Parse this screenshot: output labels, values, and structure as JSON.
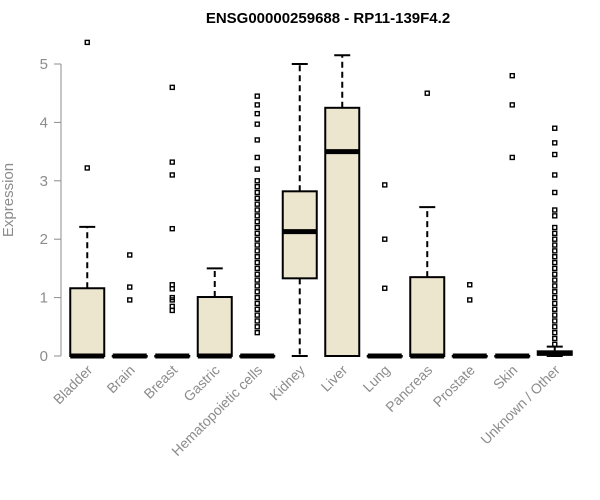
{
  "chart_data": {
    "type": "box",
    "title": "ENSG00000259688 - RP11-139F4.2",
    "xlabel": "",
    "ylabel": "Expression",
    "ylim": [
      0,
      5.3
    ],
    "yticks": [
      "0",
      "1",
      "2",
      "3",
      "4",
      "5"
    ],
    "grid": false,
    "colors": {
      "box_fill": "#ede6cf",
      "stroke": "#000000",
      "axis_text": "#8c8c8c",
      "title": "#000000"
    },
    "categories": [
      "Bladder",
      "Brain",
      "Breast",
      "Gastric",
      "Hematopoietic cells",
      "Kidney",
      "Liver",
      "Lung",
      "Pancreas",
      "Prostate",
      "Skin",
      "Unknown / Other"
    ],
    "boxes": [
      {
        "category": "Bladder",
        "min": 0,
        "q1": 0,
        "median": 0,
        "q3": 1.16,
        "max": 2.21,
        "outliers": [
          3.22,
          5.37
        ]
      },
      {
        "category": "Brain",
        "min": 0,
        "q1": 0,
        "median": 0,
        "q3": 0,
        "max": 0,
        "outliers": [
          0.96,
          1.18,
          1.73
        ]
      },
      {
        "category": "Breast",
        "min": 0,
        "q1": 0,
        "median": 0,
        "q3": 0,
        "max": 0,
        "outliers": [
          0.78,
          0.85,
          0.96,
          1.0,
          1.15,
          1.22,
          2.18,
          3.1,
          3.32,
          4.6
        ]
      },
      {
        "category": "Gastric",
        "min": 0,
        "q1": 0,
        "median": 0,
        "q3": 1.01,
        "max": 1.5,
        "outliers": []
      },
      {
        "category": "Hematopoietic cells",
        "min": 0,
        "q1": 0,
        "median": 0,
        "q3": 0,
        "max": 0,
        "outliers": [
          0.4,
          0.5,
          0.6,
          0.7,
          0.8,
          0.9,
          1.0,
          1.1,
          1.2,
          1.3,
          1.4,
          1.5,
          1.6,
          1.7,
          1.8,
          1.9,
          2.0,
          2.1,
          2.2,
          2.3,
          2.4,
          2.5,
          2.6,
          2.7,
          2.8,
          2.9,
          3.0,
          3.2,
          3.4,
          3.7,
          3.97,
          4.15,
          4.3,
          4.45
        ]
      },
      {
        "category": "Kidney",
        "min": 0,
        "q1": 1.33,
        "median": 2.13,
        "q3": 2.82,
        "max": 5.0,
        "outliers": []
      },
      {
        "category": "Liver",
        "min": 0,
        "q1": 0,
        "median": 3.5,
        "q3": 4.25,
        "max": 5.15,
        "outliers": []
      },
      {
        "category": "Lung",
        "min": 0,
        "q1": 0,
        "median": 0,
        "q3": 0,
        "max": 0,
        "outliers": [
          1.16,
          2.0,
          2.93
        ]
      },
      {
        "category": "Pancreas",
        "min": 0,
        "q1": 0,
        "median": 0,
        "q3": 1.35,
        "max": 2.55,
        "outliers": [
          4.5
        ]
      },
      {
        "category": "Prostate",
        "min": 0,
        "q1": 0,
        "median": 0,
        "q3": 0,
        "max": 0,
        "outliers": [
          0.96,
          1.22
        ]
      },
      {
        "category": "Skin",
        "min": 0,
        "q1": 0,
        "median": 0,
        "q3": 0,
        "max": 0,
        "outliers": [
          3.4,
          4.3,
          4.8
        ]
      },
      {
        "category": "Unknown / Other",
        "min": 0,
        "q1": 0.02,
        "median": 0.05,
        "q3": 0.08,
        "max": 0.16,
        "outliers": [
          0.2,
          0.3,
          0.4,
          0.5,
          0.6,
          0.7,
          0.8,
          0.9,
          1.0,
          1.1,
          1.2,
          1.3,
          1.4,
          1.5,
          1.6,
          1.7,
          1.8,
          1.9,
          2.0,
          2.1,
          2.2,
          2.4,
          2.5,
          2.8,
          3.1,
          3.45,
          3.65,
          3.9
        ]
      }
    ]
  }
}
